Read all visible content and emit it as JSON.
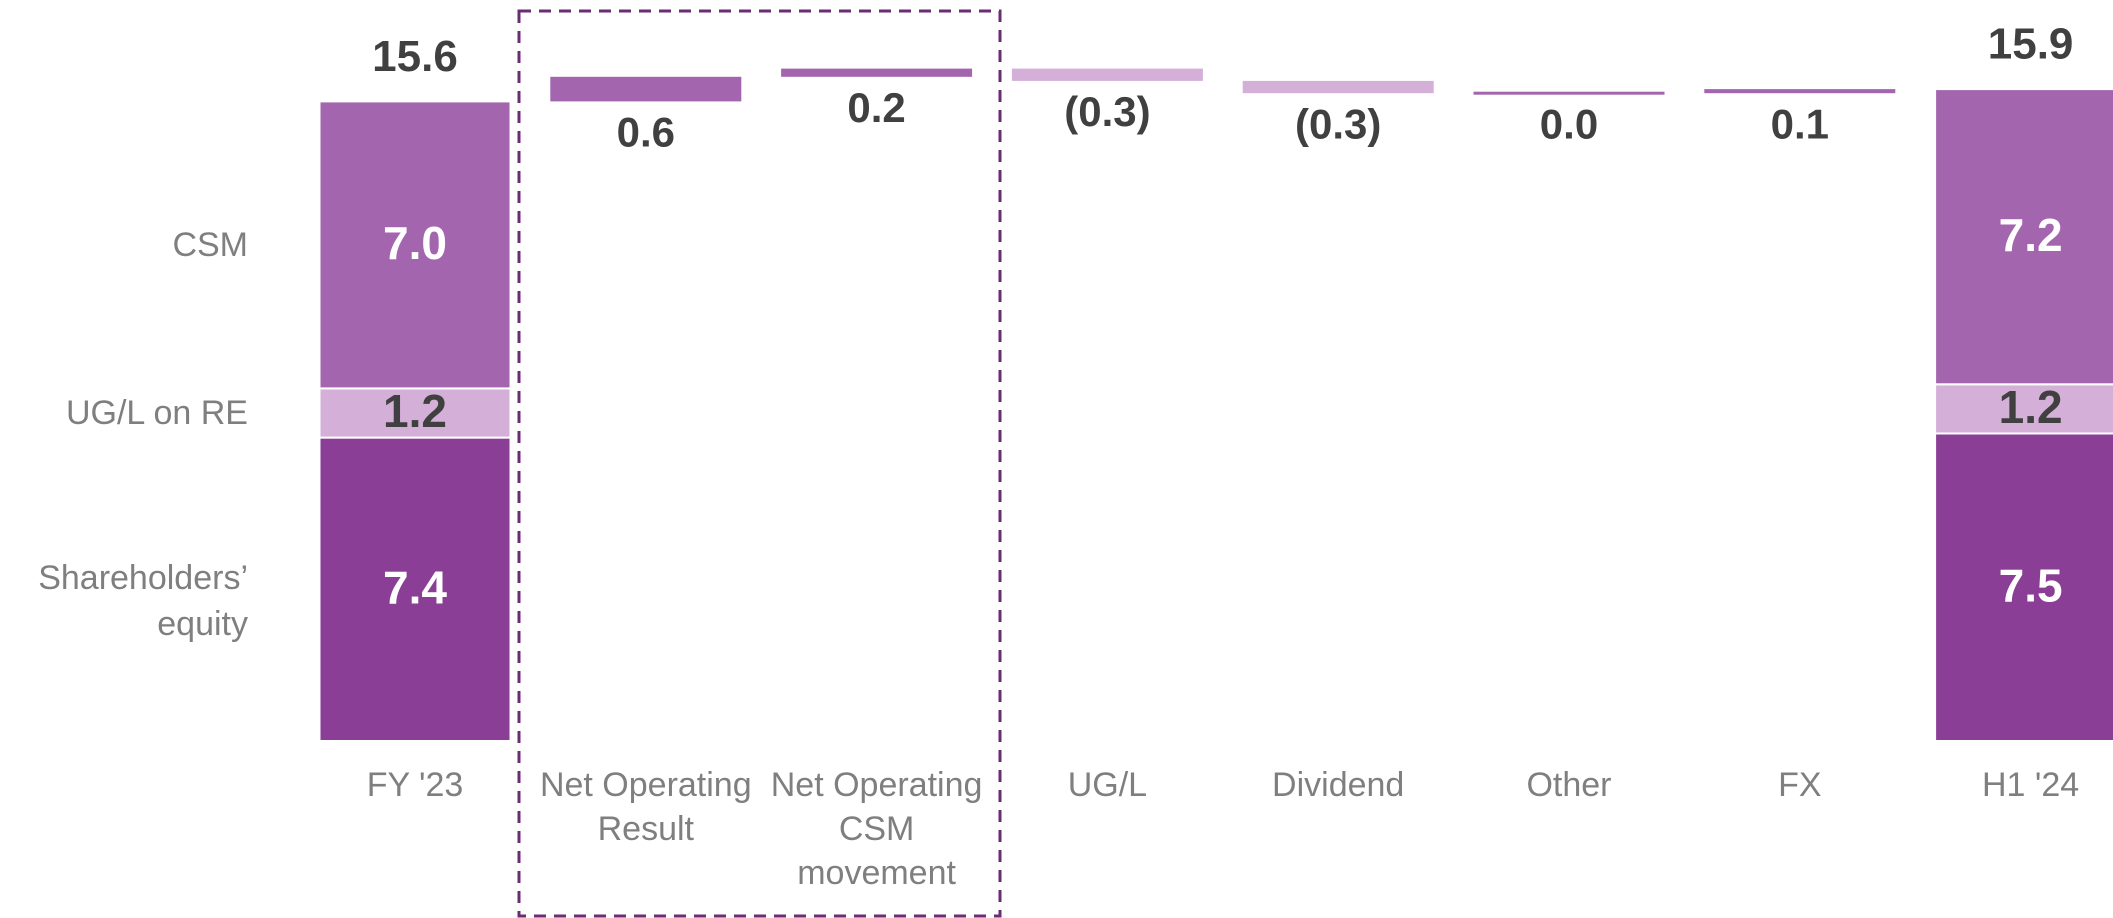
{
  "chart_data": {
    "type": "waterfall",
    "categories": [
      [
        "FY '23"
      ],
      [
        "Net Operating",
        "Result"
      ],
      [
        "Net Operating",
        "CSM",
        "movement"
      ],
      [
        "UG/L"
      ],
      [
        "Dividend"
      ],
      [
        "Other"
      ],
      [
        "FX"
      ],
      [
        "H1 '24"
      ]
    ],
    "series": [
      {
        "name": "Shareholders’ equity",
        "color": "#8a3e96",
        "values": [
          7.4,
          null,
          null,
          null,
          null,
          null,
          null,
          7.5
        ],
        "value_labels": [
          "7.4",
          null,
          null,
          null,
          null,
          null,
          null,
          "7.5"
        ]
      },
      {
        "name": "UG/L on RE",
        "color": "#d4b0d9",
        "values": [
          1.2,
          null,
          null,
          null,
          null,
          null,
          null,
          1.2
        ],
        "value_labels": [
          "1.2",
          null,
          null,
          null,
          null,
          null,
          null,
          "1.2"
        ]
      },
      {
        "name": "CSM",
        "color": "#a366ae",
        "values": [
          7.0,
          null,
          null,
          null,
          null,
          null,
          null,
          7.2
        ],
        "value_labels": [
          "7.0",
          null,
          null,
          null,
          null,
          null,
          null,
          "7.2"
        ]
      }
    ],
    "totals": [
      15.6,
      null,
      null,
      null,
      null,
      null,
      null,
      15.9
    ],
    "changes": {
      "values": [
        null,
        0.6,
        0.2,
        -0.3,
        -0.3,
        0.0,
        0.1,
        null
      ],
      "value_labels": [
        null,
        "0.6",
        "0.2",
        "(0.3)",
        "(0.3)",
        "0.0",
        "0.1",
        null
      ],
      "positive_color": "#a366ae",
      "negative_color": "#d4b0d9"
    }
  }
}
